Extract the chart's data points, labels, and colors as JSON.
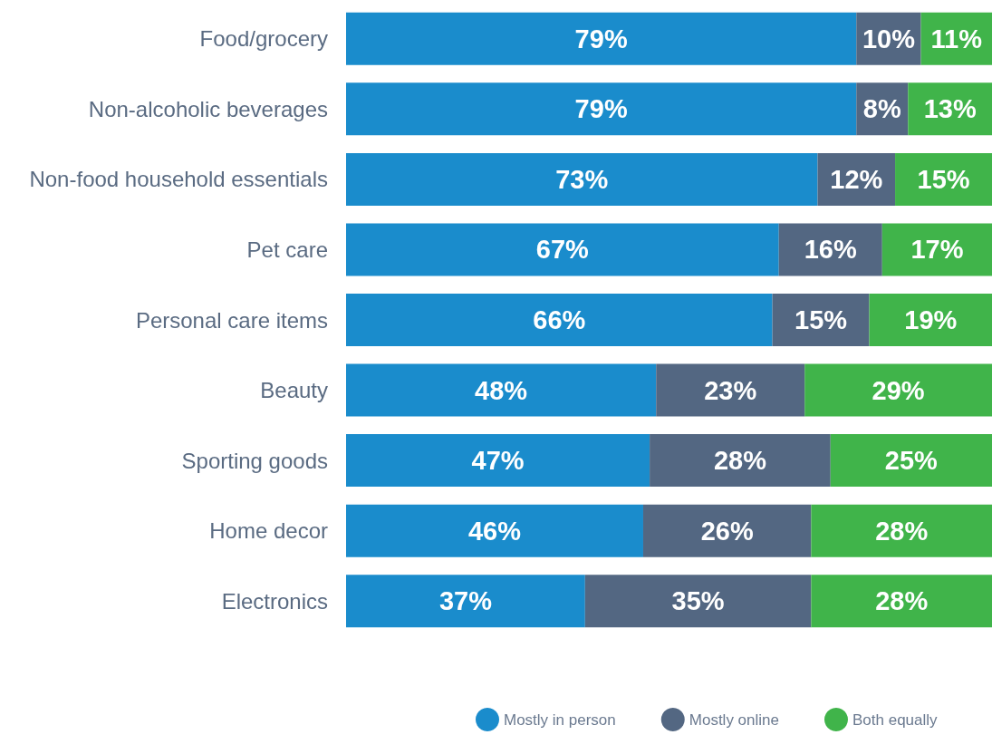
{
  "chart_data": {
    "type": "bar",
    "orientation": "horizontal",
    "stacked": true,
    "categories": [
      "Food/grocery",
      "Non-alcoholic beverages",
      "Non-food household essentials",
      "Pet care",
      "Personal care items",
      "Beauty",
      "Sporting goods",
      "Home decor",
      "Electronics"
    ],
    "series": [
      {
        "name": "Mostly in person",
        "color": "#1a8ccc",
        "values": [
          79,
          79,
          73,
          67,
          66,
          48,
          47,
          46,
          37
        ],
        "value_labels": [
          "79%",
          "79%",
          "73%",
          "67%",
          "66%",
          "48%",
          "47%",
          "46%",
          "37%"
        ]
      },
      {
        "name": "Mostly online",
        "color": "#536782",
        "values": [
          10,
          8,
          12,
          16,
          15,
          23,
          28,
          26,
          35
        ],
        "value_labels": [
          "10%",
          "8%",
          "12%",
          "16%",
          "15%",
          "23%",
          "28%",
          "26%",
          "35%"
        ]
      },
      {
        "name": "Both equally",
        "color": "#40b44a",
        "values": [
          11,
          13,
          15,
          17,
          19,
          29,
          25,
          28,
          28
        ],
        "value_labels": [
          "11%",
          "13%",
          "15%",
          "17%",
          "19%",
          "29%",
          "25%",
          "28%",
          "28%"
        ]
      }
    ],
    "xlim": [
      0,
      100
    ],
    "tick_labels": "y",
    "legend": "bottom"
  }
}
